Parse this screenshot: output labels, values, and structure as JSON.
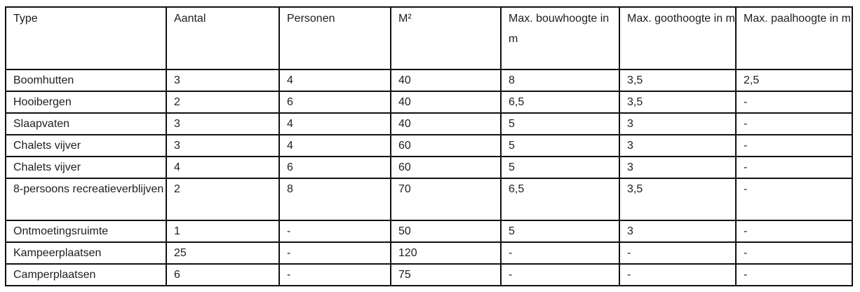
{
  "table": {
    "headers": [
      "Type",
      "Aantal",
      "Personen",
      "M²",
      "Max. bouwhoogte in m",
      "Max. goothoogte in m",
      "Max. paalhoogte in m"
    ],
    "rows": [
      [
        "Boomhutten",
        "3",
        "4",
        "40",
        "8",
        "3,5",
        "2,5"
      ],
      [
        "Hooibergen",
        "2",
        "6",
        "40",
        "6,5",
        "3,5",
        "-"
      ],
      [
        "Slaapvaten",
        "3",
        "4",
        "40",
        "5",
        "3",
        "-"
      ],
      [
        "Chalets vijver",
        "3",
        "4",
        "60",
        "5",
        "3",
        "-"
      ],
      [
        "Chalets vijver",
        "4",
        "6",
        "60",
        "5",
        "3",
        "-"
      ],
      [
        "8-persoons recreatieverblijven",
        "2",
        "8",
        "70",
        "6,5",
        "3,5",
        "-"
      ],
      [
        "Ontmoetingsruimte",
        "1",
        "-",
        "50",
        "5",
        "3",
        "-"
      ],
      [
        "Kampeerplaatsen",
        "25",
        "-",
        "120",
        "-",
        "-",
        "-"
      ],
      [
        "Camperplaatsen",
        "6",
        "-",
        "75",
        "-",
        "-",
        "-"
      ]
    ]
  }
}
